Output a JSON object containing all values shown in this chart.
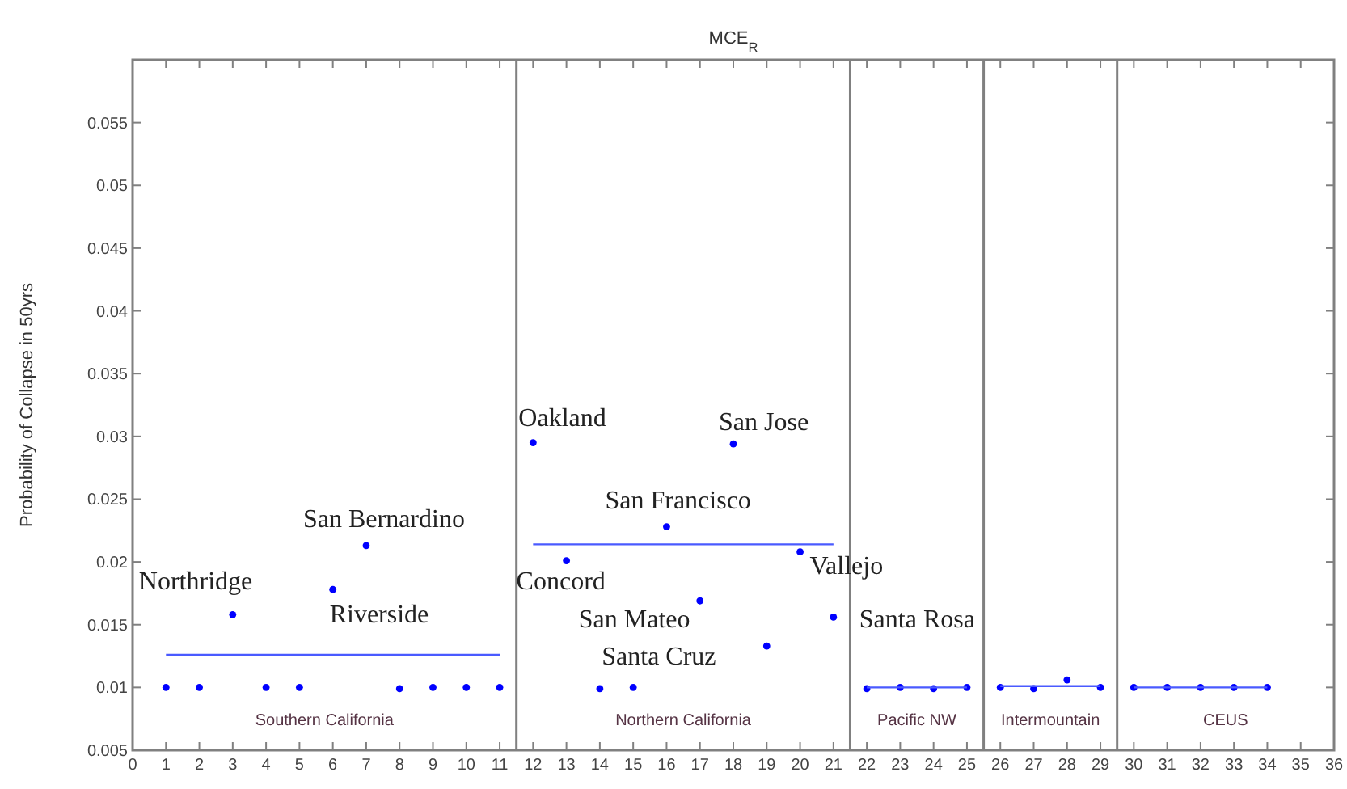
{
  "chart_data": {
    "type": "scatter",
    "title": "MCE$_{R}$",
    "ylabel": "Probability of Collapse in 50yrs",
    "xlim": [
      0,
      36
    ],
    "xticks": [
      0,
      1,
      2,
      3,
      4,
      5,
      6,
      7,
      8,
      9,
      10,
      11,
      12,
      13,
      14,
      15,
      16,
      17,
      18,
      19,
      20,
      21,
      22,
      23,
      24,
      25,
      26,
      27,
      28,
      29,
      30,
      31,
      32,
      33,
      34,
      35,
      36
    ],
    "ylim": [
      0.005,
      0.06
    ],
    "yticks": [
      0.005,
      0.01,
      0.015,
      0.02,
      0.025,
      0.03,
      0.035,
      0.04,
      0.045,
      0.05,
      0.055
    ],
    "grid": false,
    "series": [
      {
        "color": "#0000ff",
        "marker": "circle",
        "x": [
          1,
          2,
          3,
          4,
          5,
          6,
          7,
          8,
          9,
          10,
          11,
          12,
          13,
          14,
          15,
          16,
          17,
          18,
          19,
          20,
          21,
          22,
          23,
          24,
          25,
          26,
          27,
          28,
          29,
          30,
          31,
          32,
          33,
          34
        ],
        "values": [
          0.01,
          0.01,
          0.0158,
          0.01,
          0.01,
          0.0178,
          0.0213,
          0.0099,
          0.01,
          0.01,
          0.01,
          0.0295,
          0.0201,
          0.0099,
          0.01,
          0.0228,
          0.0169,
          0.0294,
          0.0133,
          0.0208,
          0.0156,
          0.0099,
          0.01,
          0.0099,
          0.01,
          0.01,
          0.0099,
          0.0106,
          0.01,
          0.01,
          0.01,
          0.01,
          0.01,
          0.01
        ]
      },
      {
        "type": "line",
        "color": "#4a5aff",
        "marker": "none",
        "line_style": "solid",
        "x": [
          1,
          11
        ],
        "values": [
          0.0126,
          0.0126
        ]
      },
      {
        "type": "line",
        "color": "#4a5aff",
        "marker": "none",
        "line_style": "solid",
        "x": [
          12,
          21
        ],
        "values": [
          0.0214,
          0.0214
        ]
      },
      {
        "type": "line",
        "color": "#4a5aff",
        "marker": "none",
        "line_style": "solid",
        "x": [
          22,
          25
        ],
        "values": [
          0.01,
          0.01
        ]
      },
      {
        "type": "line",
        "color": "#4a5aff",
        "marker": "none",
        "line_style": "solid",
        "x": [
          26,
          29
        ],
        "values": [
          0.0101,
          0.0101
        ]
      },
      {
        "type": "line",
        "color": "#4a5aff",
        "marker": "none",
        "line_style": "solid",
        "x": [
          30,
          34
        ],
        "values": [
          0.01,
          0.01
        ]
      }
    ],
    "ref_lines": [
      {
        "axis": "x",
        "value": 11.5,
        "color": "#808080"
      },
      {
        "axis": "x",
        "value": 21.5,
        "color": "#808080"
      },
      {
        "axis": "x",
        "value": 25.5,
        "color": "#808080"
      },
      {
        "axis": "x",
        "value": 29.5,
        "color": "#808080"
      }
    ],
    "annotations": [
      {
        "text": "Northridge",
        "x": 3,
        "y": 0.0158
      },
      {
        "text": "San Bernardino",
        "x": 7,
        "y": 0.0213
      },
      {
        "text": "Riverside",
        "x": 6,
        "y": 0.0178
      },
      {
        "text": "Oakland",
        "x": 12,
        "y": 0.0295
      },
      {
        "text": "Concord",
        "x": 13,
        "y": 0.0201
      },
      {
        "text": "San Jose",
        "x": 18,
        "y": 0.0294
      },
      {
        "text": "San Francisco",
        "x": 16,
        "y": 0.0228
      },
      {
        "text": "Vallejo",
        "x": 20,
        "y": 0.0208
      },
      {
        "text": "San Mateo",
        "x": 17,
        "y": 0.0169
      },
      {
        "text": "Santa Cruz",
        "x": 19,
        "y": 0.0133
      },
      {
        "text": "Santa Rosa",
        "x": 21,
        "y": 0.0156
      },
      "Southern California",
      "Northern California",
      "Pacific NW",
      "Intermountain",
      "CEUS"
    ]
  }
}
